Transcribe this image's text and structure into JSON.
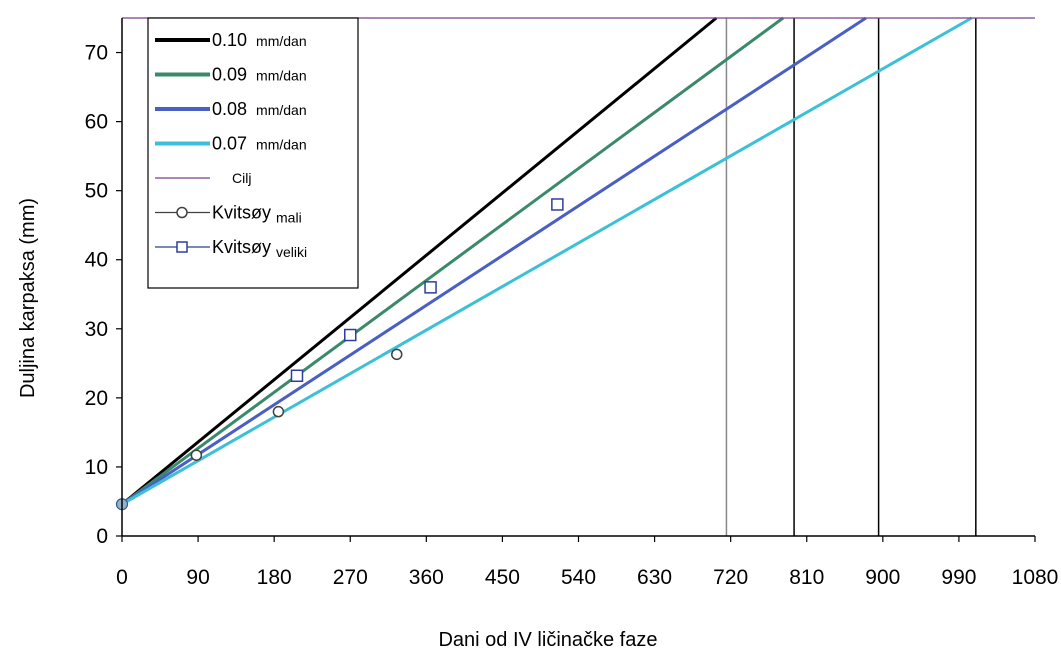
{
  "chart_data": {
    "type": "line",
    "xlabel": "Dani od IV ličinačke faze",
    "ylabel": "Duljina karpaksa (mm)",
    "xlim": [
      0,
      1080
    ],
    "ylim": [
      0,
      75
    ],
    "x_ticks": [
      "0",
      "90",
      "180",
      "270",
      "360",
      "450",
      "540",
      "630",
      "720",
      "810",
      "900",
      "990",
      "1080"
    ],
    "y_ticks": [
      "0",
      "10",
      "20",
      "30",
      "40",
      "50",
      "60",
      "70"
    ],
    "grid": false,
    "legend_position": "top-left",
    "series": [
      {
        "name": "0.10",
        "unit": "mm/dan",
        "kind": "line",
        "color": "#000000",
        "x": [
          0,
          703
        ],
        "y": [
          4.6,
          75
        ]
      },
      {
        "name": "0.09",
        "unit": "mm/dan",
        "kind": "line",
        "color": "#3a8a6a",
        "x": [
          0,
          782
        ],
        "y": [
          4.6,
          75
        ]
      },
      {
        "name": "0.08",
        "unit": "mm/dan",
        "kind": "line",
        "color": "#4a5fc4",
        "x": [
          0,
          880
        ],
        "y": [
          4.6,
          75
        ]
      },
      {
        "name": "0.07",
        "unit": "mm/dan",
        "kind": "line",
        "color": "#3bc0d8",
        "x": [
          0,
          1005
        ],
        "y": [
          4.6,
          75
        ]
      },
      {
        "name": "Cilj",
        "unit": "",
        "kind": "hline",
        "color": "#7b3f8a",
        "x": [
          0,
          1080
        ],
        "y": [
          75,
          75
        ]
      },
      {
        "name": "Kvitsøy",
        "unit": "mali",
        "kind": "circle",
        "color": "#404040",
        "x": [
          0,
          88,
          185,
          325
        ],
        "y": [
          4.6,
          11.7,
          18.0,
          26.3
        ]
      },
      {
        "name": "Kvitsøy",
        "unit": "veliki",
        "kind": "square",
        "color": "#2e3f99",
        "x": [
          0,
          207,
          270,
          365,
          515
        ],
        "y": [
          4.6,
          23.2,
          29.1,
          36.0,
          48.0
        ]
      }
    ],
    "vlines": [
      {
        "x": 715,
        "color": "#888888"
      },
      {
        "x": 795,
        "color": "#000000"
      },
      {
        "x": 895,
        "color": "#000000"
      },
      {
        "x": 1010,
        "color": "#000000"
      }
    ]
  }
}
